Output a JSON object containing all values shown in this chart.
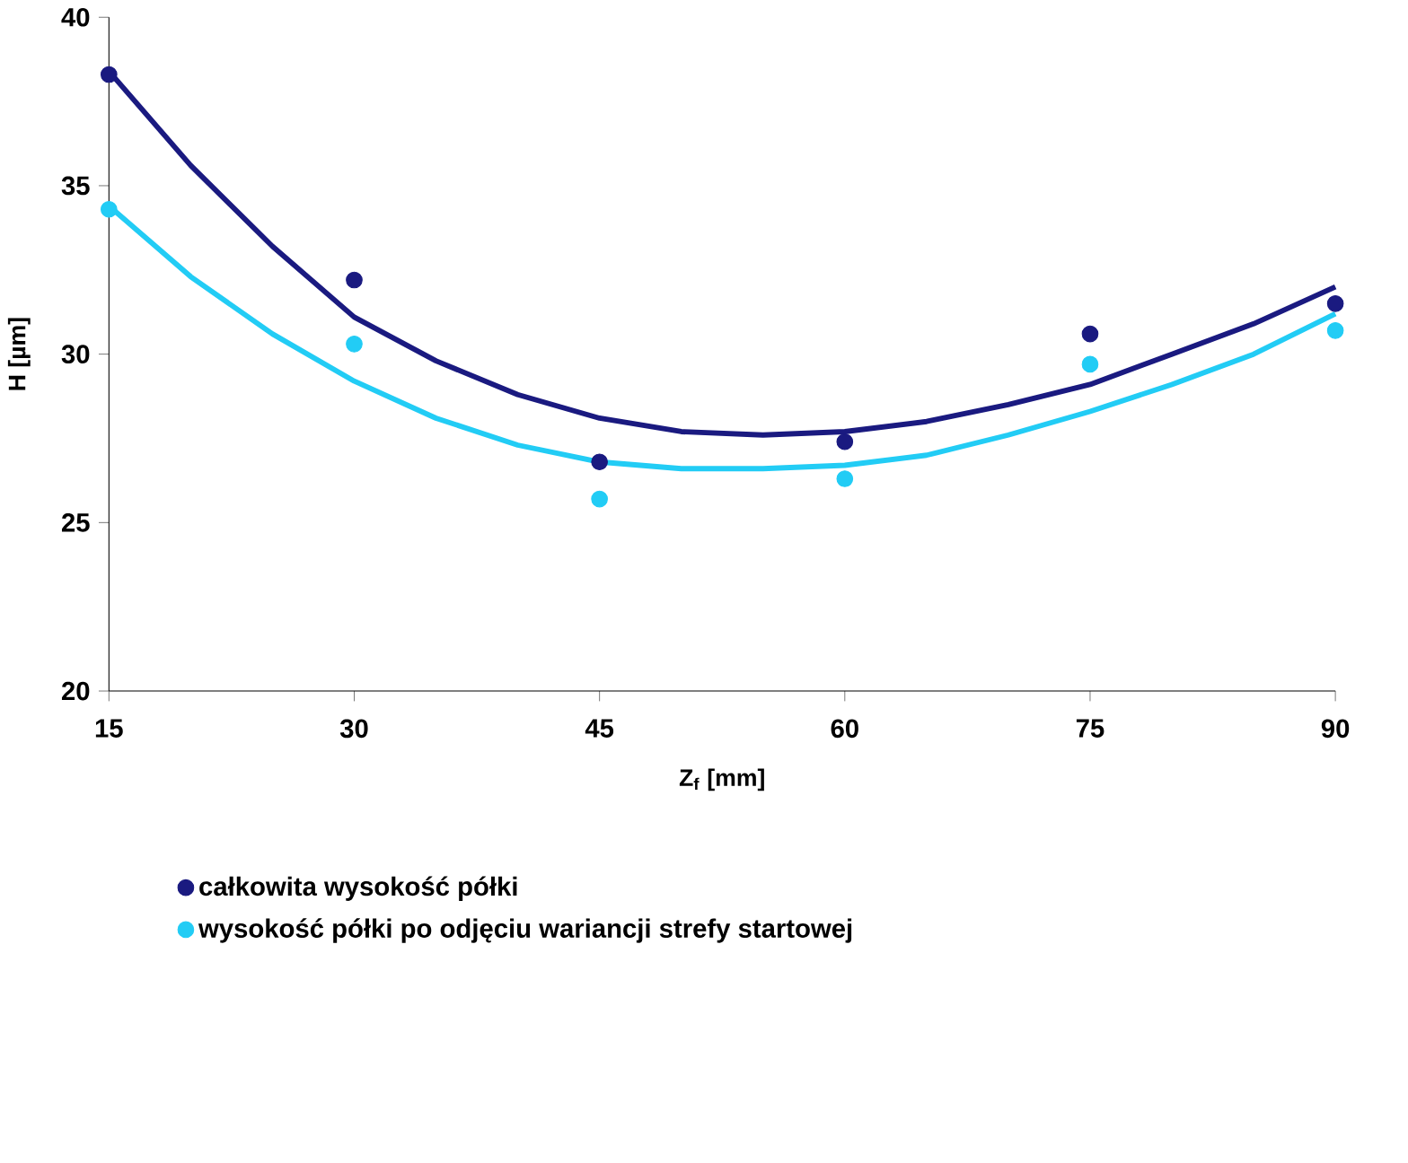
{
  "chart_data": {
    "type": "scatter",
    "xlabel": "Z$_{f}$ [mm]",
    "ylabel": "H [µm]",
    "x": [
      15,
      30,
      45,
      60,
      75,
      90
    ],
    "series": [
      {
        "name": "całkowita wysokość półki",
        "color": "#1a1a80",
        "marker": "circle",
        "values": [
          38.3,
          32.2,
          26.8,
          27.4,
          30.6,
          31.5
        ]
      },
      {
        "name": "wysokość półki po odjęciu wariancji strefy startowej",
        "color": "#22ccf5",
        "marker": "circle",
        "values": [
          34.3,
          30.3,
          25.7,
          26.3,
          29.7,
          30.7
        ]
      },
      {
        "color": "#1a1a80",
        "type": "line",
        "marker": "none",
        "line_style": "solid",
        "x": [
          15,
          20,
          25,
          30,
          35,
          40,
          45,
          50,
          55,
          60,
          65,
          70,
          75,
          80,
          85,
          90
        ],
        "values": [
          38.4,
          35.6,
          33.2,
          31.1,
          29.8,
          28.8,
          28.1,
          27.7,
          27.6,
          27.7,
          28.0,
          28.5,
          29.1,
          30.0,
          30.9,
          32.0
        ]
      },
      {
        "color": "#22ccf5",
        "type": "line",
        "marker": "none",
        "line_style": "solid",
        "x": [
          15,
          20,
          25,
          30,
          35,
          40,
          45,
          50,
          55,
          60,
          65,
          70,
          75,
          80,
          85,
          90
        ],
        "values": [
          34.4,
          32.3,
          30.6,
          29.2,
          28.1,
          27.3,
          26.8,
          26.6,
          26.6,
          26.7,
          27.0,
          27.6,
          28.3,
          29.1,
          30.0,
          31.2
        ]
      }
    ],
    "xlim": [
      15,
      90
    ],
    "ylim": [
      20,
      40
    ],
    "xticks": [
      15,
      30,
      45,
      60,
      75,
      90
    ],
    "yticks": [
      20,
      25,
      30,
      35,
      40
    ],
    "grid": false,
    "legend": "bottom"
  }
}
